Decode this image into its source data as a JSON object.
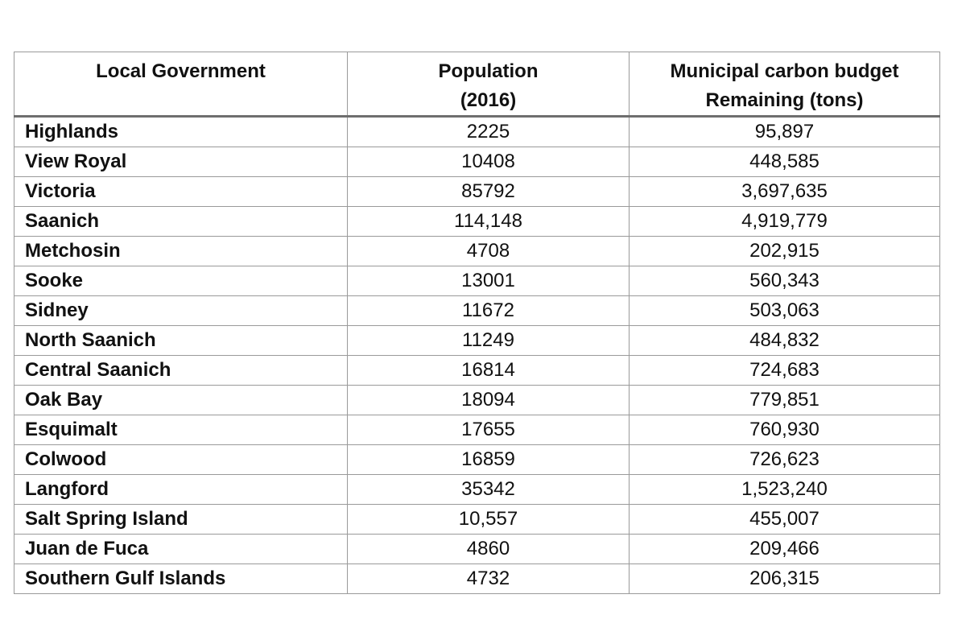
{
  "table": {
    "headers": {
      "col1": "Local Government",
      "col2_line1": "Population",
      "col2_line2": "(2016)",
      "col3_line1": "Municipal carbon budget",
      "col3_line2": "Remaining (tons)"
    },
    "rows": [
      {
        "name": "Highlands",
        "population": "2225",
        "budget": "95,897"
      },
      {
        "name": "View Royal",
        "population": "10408",
        "budget": "448,585"
      },
      {
        "name": "Victoria",
        "population": "85792",
        "budget": "3,697,635"
      },
      {
        "name": "Saanich",
        "population": "114,148",
        "budget": "4,919,779"
      },
      {
        "name": "Metchosin",
        "population": "4708",
        "budget": "202,915"
      },
      {
        "name": "Sooke",
        "population": "13001",
        "budget": "560,343"
      },
      {
        "name": "Sidney",
        "population": "11672",
        "budget": "503,063"
      },
      {
        "name": "North Saanich",
        "population": "11249",
        "budget": "484,832"
      },
      {
        "name": "Central Saanich",
        "population": "16814",
        "budget": "724,683"
      },
      {
        "name": "Oak Bay",
        "population": "18094",
        "budget": "779,851"
      },
      {
        "name": "Esquimalt",
        "population": "17655",
        "budget": "760,930"
      },
      {
        "name": "Colwood",
        "population": "16859",
        "budget": "726,623"
      },
      {
        "name": "Langford",
        "population": "35342",
        "budget": "1,523,240"
      },
      {
        "name": "Salt Spring Island",
        "population": "10,557",
        "budget": "455,007"
      },
      {
        "name": "Juan de Fuca",
        "population": "4860",
        "budget": "209,466"
      },
      {
        "name": "Southern Gulf Islands",
        "population": "4732",
        "budget": "206,315"
      }
    ]
  }
}
